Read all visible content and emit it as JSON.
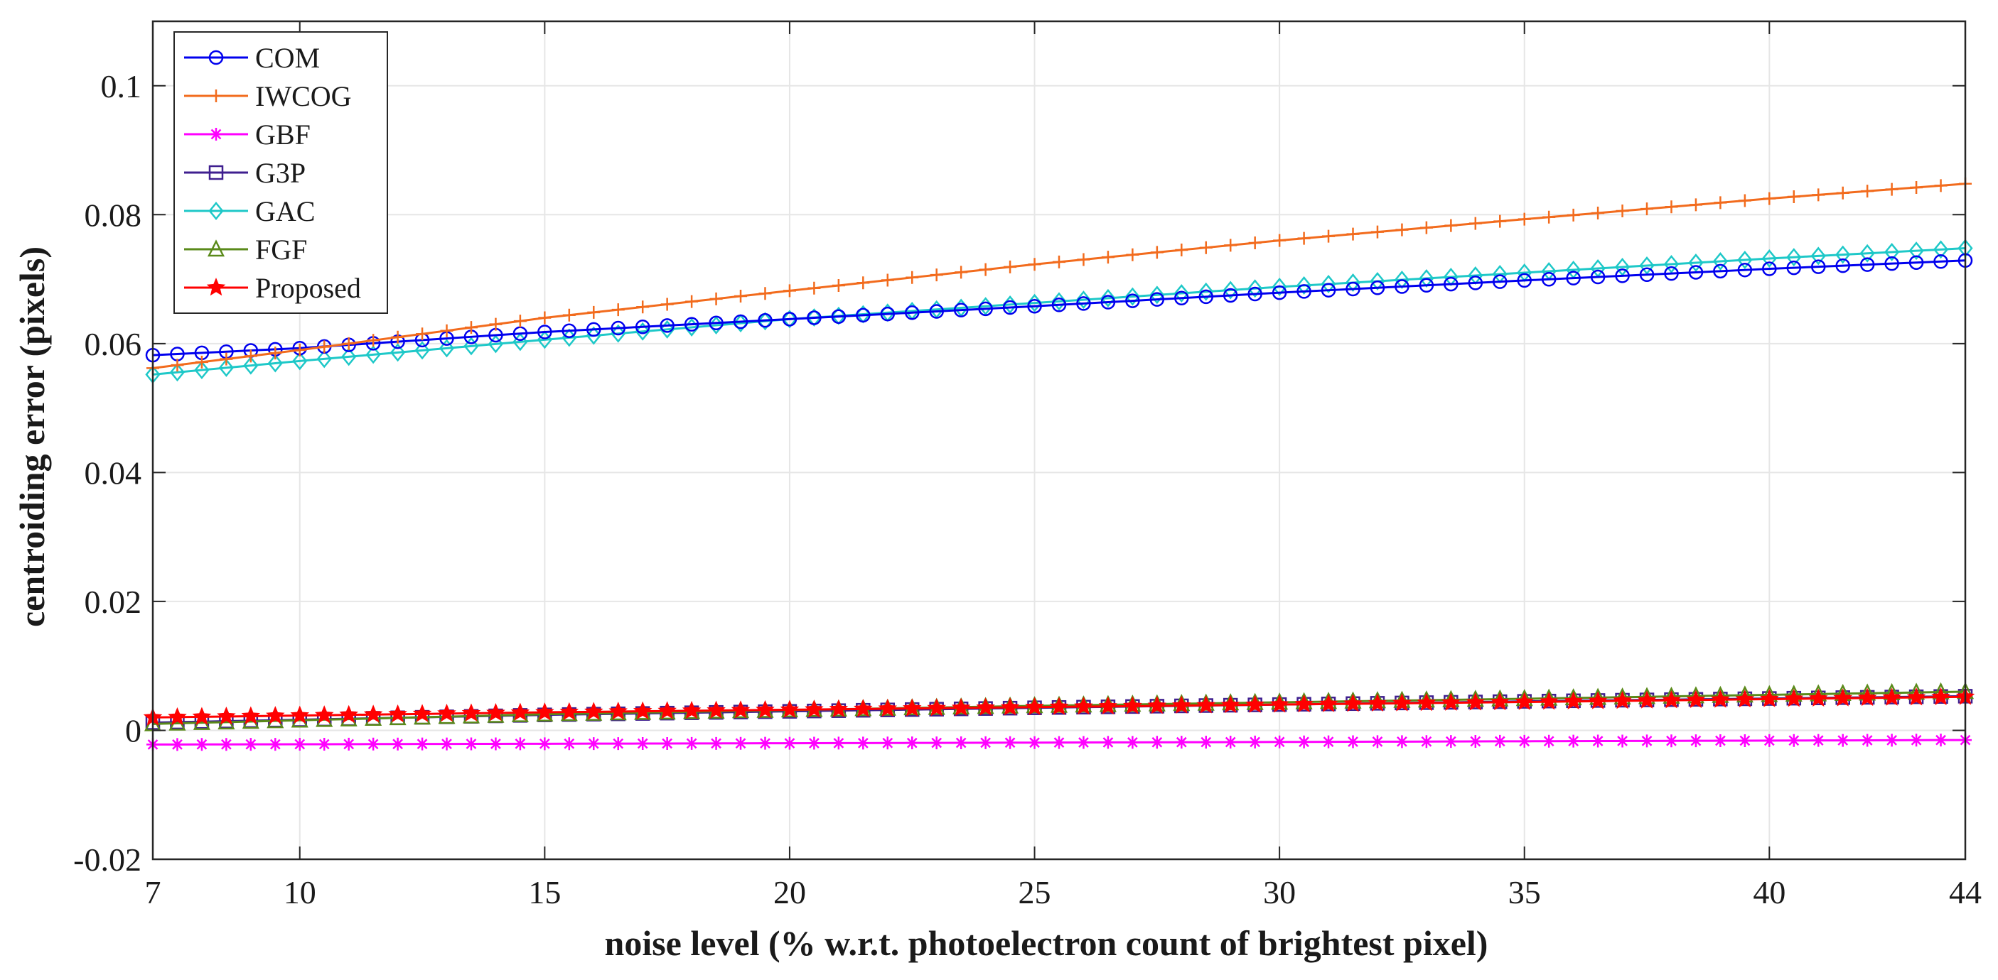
{
  "chart_data": {
    "type": "line",
    "title": "",
    "xlabel": "noise level (% w.r.t. photoelectron count of brightest pixel)",
    "ylabel": "centroiding error (pixels)",
    "xlim": [
      7,
      44
    ],
    "ylim": [
      -0.02,
      0.11
    ],
    "xticks": [
      7,
      10,
      15,
      20,
      25,
      30,
      35,
      40,
      44
    ],
    "yticks": [
      -0.02,
      0,
      0.02,
      0.04,
      0.06,
      0.08,
      0.1
    ],
    "xtick_labels": [
      "7",
      "10",
      "15",
      "20",
      "25",
      "30",
      "35",
      "40",
      "44"
    ],
    "ytick_labels": [
      "-0.02",
      "0",
      "0.02",
      "0.04",
      "0.06",
      "0.08",
      "0.1"
    ],
    "grid": true,
    "legend_position": "top-left",
    "x": {
      "start": 7,
      "end": 44,
      "step": 0.5
    },
    "series": [
      {
        "name": "COM",
        "color": "#0000ee",
        "marker": "circle",
        "points": [
          [
            7,
            0.0582
          ],
          [
            10,
            0.0593
          ],
          [
            15,
            0.0618
          ],
          [
            20,
            0.0638
          ],
          [
            25,
            0.0658
          ],
          [
            30,
            0.0679
          ],
          [
            35,
            0.0698
          ],
          [
            40,
            0.0716
          ],
          [
            44,
            0.0729
          ]
        ]
      },
      {
        "name": "IWCOG",
        "color": "#f26b1d",
        "marker": "plus",
        "points": [
          [
            7,
            0.0562
          ],
          [
            10,
            0.059
          ],
          [
            15,
            0.064
          ],
          [
            20,
            0.0682
          ],
          [
            25,
            0.0723
          ],
          [
            30,
            0.076
          ],
          [
            35,
            0.0793
          ],
          [
            40,
            0.0825
          ],
          [
            44,
            0.0848
          ]
        ]
      },
      {
        "name": "GBF",
        "color": "#ff00ff",
        "marker": "asterisk",
        "points": [
          [
            7,
            -0.0022
          ],
          [
            20,
            -0.002
          ],
          [
            30,
            -0.0018
          ],
          [
            44,
            -0.0015
          ]
        ]
      },
      {
        "name": "G3P",
        "color": "#3f1f8f",
        "marker": "square",
        "points": [
          [
            7,
            0.0012
          ],
          [
            15,
            0.0024
          ],
          [
            25,
            0.0035
          ],
          [
            35,
            0.0045
          ],
          [
            44,
            0.0053
          ]
        ]
      },
      {
        "name": "GAC",
        "color": "#1ec8c8",
        "marker": "diamond",
        "points": [
          [
            7,
            0.0552
          ],
          [
            10,
            0.0573
          ],
          [
            15,
            0.0606
          ],
          [
            20,
            0.0638
          ],
          [
            25,
            0.0663
          ],
          [
            30,
            0.0688
          ],
          [
            35,
            0.071
          ],
          [
            40,
            0.0732
          ],
          [
            44,
            0.0748
          ]
        ]
      },
      {
        "name": "FGF",
        "color": "#5a8a1a",
        "marker": "triangle",
        "points": [
          [
            7,
            0.001
          ],
          [
            15,
            0.0025
          ],
          [
            25,
            0.0038
          ],
          [
            35,
            0.0049
          ],
          [
            44,
            0.006
          ]
        ]
      },
      {
        "name": "Proposed",
        "color": "#ff0000",
        "marker": "star",
        "points": [
          [
            7,
            0.002
          ],
          [
            15,
            0.0028
          ],
          [
            25,
            0.0036
          ],
          [
            35,
            0.0044
          ],
          [
            44,
            0.0052
          ]
        ]
      }
    ]
  }
}
